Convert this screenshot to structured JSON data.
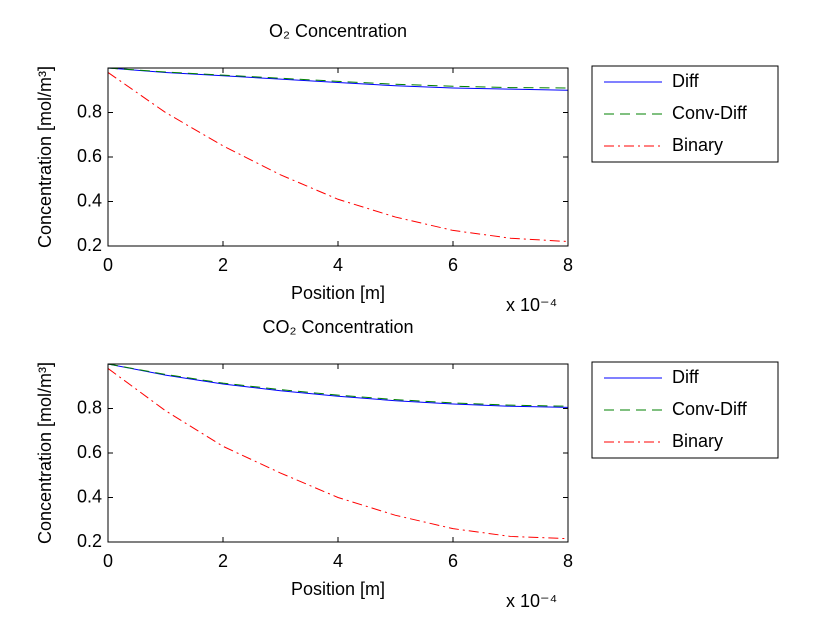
{
  "chart_data": [
    {
      "type": "line",
      "title": "O₂ Concentration",
      "x_label": "Position [m]",
      "y_label": "Concentration [mol/m³]",
      "x_multiplier": "x 10⁻⁴",
      "x": [
        0,
        1,
        2,
        3,
        4,
        5,
        6,
        7,
        8
      ],
      "xlim": [
        0,
        8
      ],
      "xticks": [
        0,
        2,
        4,
        6,
        8
      ],
      "ylim": [
        0.2,
        1
      ],
      "yticks": [
        0.2,
        0.4,
        0.6,
        0.8
      ],
      "legend": "outside-right",
      "series": [
        {
          "name": "Diff",
          "color": "#0000ff",
          "dash": "solid",
          "values": [
            1.0,
            0.98,
            0.965,
            0.95,
            0.935,
            0.92,
            0.91,
            0.905,
            0.9
          ]
        },
        {
          "name": "Conv-Diff",
          "color": "#008000",
          "dash": "dashed",
          "values": [
            1.0,
            0.982,
            0.968,
            0.954,
            0.94,
            0.927,
            0.918,
            0.912,
            0.91
          ]
        },
        {
          "name": "Binary",
          "color": "#ff0000",
          "dash": "dashdot",
          "values": [
            0.98,
            0.8,
            0.65,
            0.52,
            0.41,
            0.33,
            0.27,
            0.235,
            0.22
          ]
        }
      ]
    },
    {
      "type": "line",
      "title": "CO₂ Concentration",
      "x_label": "Position [m]",
      "y_label": "Concentration [mol/m³]",
      "x_multiplier": "x 10⁻⁴",
      "x": [
        0,
        1,
        2,
        3,
        4,
        5,
        6,
        7,
        8
      ],
      "xlim": [
        0,
        8
      ],
      "xticks": [
        0,
        2,
        4,
        6,
        8
      ],
      "ylim": [
        0.2,
        1
      ],
      "yticks": [
        0.2,
        0.4,
        0.6,
        0.8
      ],
      "legend": "outside-right",
      "series": [
        {
          "name": "Diff",
          "color": "#0000ff",
          "dash": "solid",
          "values": [
            1.0,
            0.95,
            0.91,
            0.88,
            0.855,
            0.835,
            0.82,
            0.81,
            0.805
          ]
        },
        {
          "name": "Conv-Diff",
          "color": "#008000",
          "dash": "dashed",
          "values": [
            1.0,
            0.953,
            0.914,
            0.885,
            0.86,
            0.84,
            0.825,
            0.815,
            0.81
          ]
        },
        {
          "name": "Binary",
          "color": "#ff0000",
          "dash": "dashdot",
          "values": [
            0.98,
            0.79,
            0.63,
            0.51,
            0.4,
            0.32,
            0.26,
            0.225,
            0.215
          ]
        }
      ]
    }
  ]
}
